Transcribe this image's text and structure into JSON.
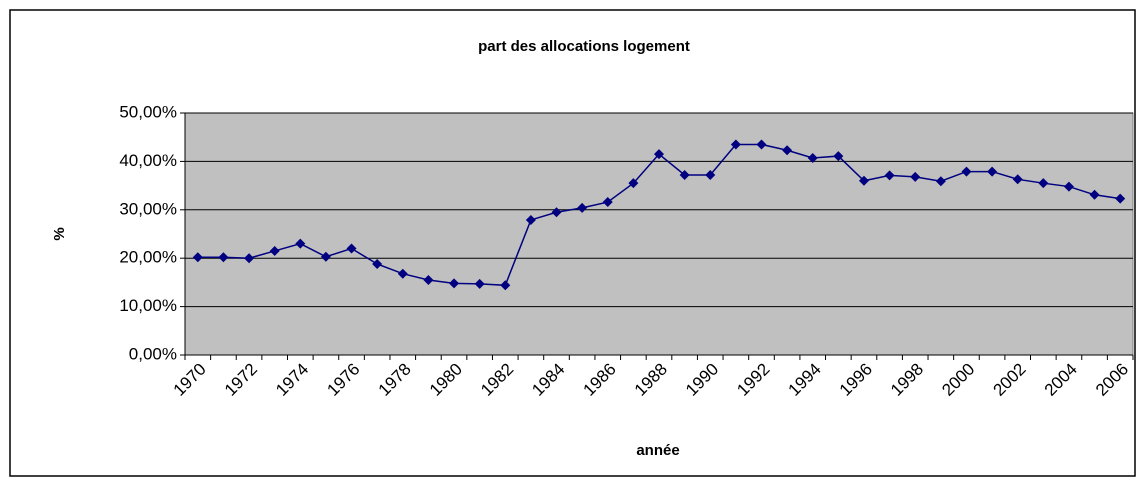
{
  "chart_data": {
    "type": "line",
    "title": "part des allocations logement",
    "x_label": "année",
    "y_label": "%",
    "categories": [
      "1970",
      null,
      "1972",
      null,
      "1974",
      null,
      "1976",
      null,
      "1978",
      null,
      "1980",
      null,
      "1982",
      null,
      "1984",
      null,
      "1986",
      null,
      "1988",
      null,
      "1990",
      null,
      "1992",
      null,
      "1994",
      null,
      "1996",
      null,
      "1998",
      null,
      "2000",
      null,
      "2002",
      null,
      "2004",
      null,
      "2006"
    ],
    "series": [
      {
        "color": "#000080",
        "values": [
          20.2,
          20.2,
          20.0,
          21.5,
          23.0,
          20.3,
          22.0,
          18.8,
          16.8,
          15.5,
          14.8,
          14.7,
          14.4,
          27.9,
          29.5,
          30.4,
          31.6,
          35.5,
          41.5,
          37.2,
          37.2,
          43.5,
          43.5,
          42.3,
          40.7,
          41.1,
          36.0,
          37.1,
          36.8,
          35.9,
          37.9,
          37.9,
          36.3,
          35.5,
          34.8,
          33.1,
          32.3
        ]
      }
    ],
    "ylim": [
      0,
      50
    ],
    "yticks": [
      {
        "value": 0,
        "label": "0,00%"
      },
      {
        "value": 10,
        "label": "10,00%"
      },
      {
        "value": 20,
        "label": "20,00%"
      },
      {
        "value": 30,
        "label": "30,00%"
      },
      {
        "value": 40,
        "label": "40,00%"
      },
      {
        "value": 50,
        "label": "50,00%"
      }
    ],
    "grid": true,
    "plot_background": "#c0c0c0"
  }
}
